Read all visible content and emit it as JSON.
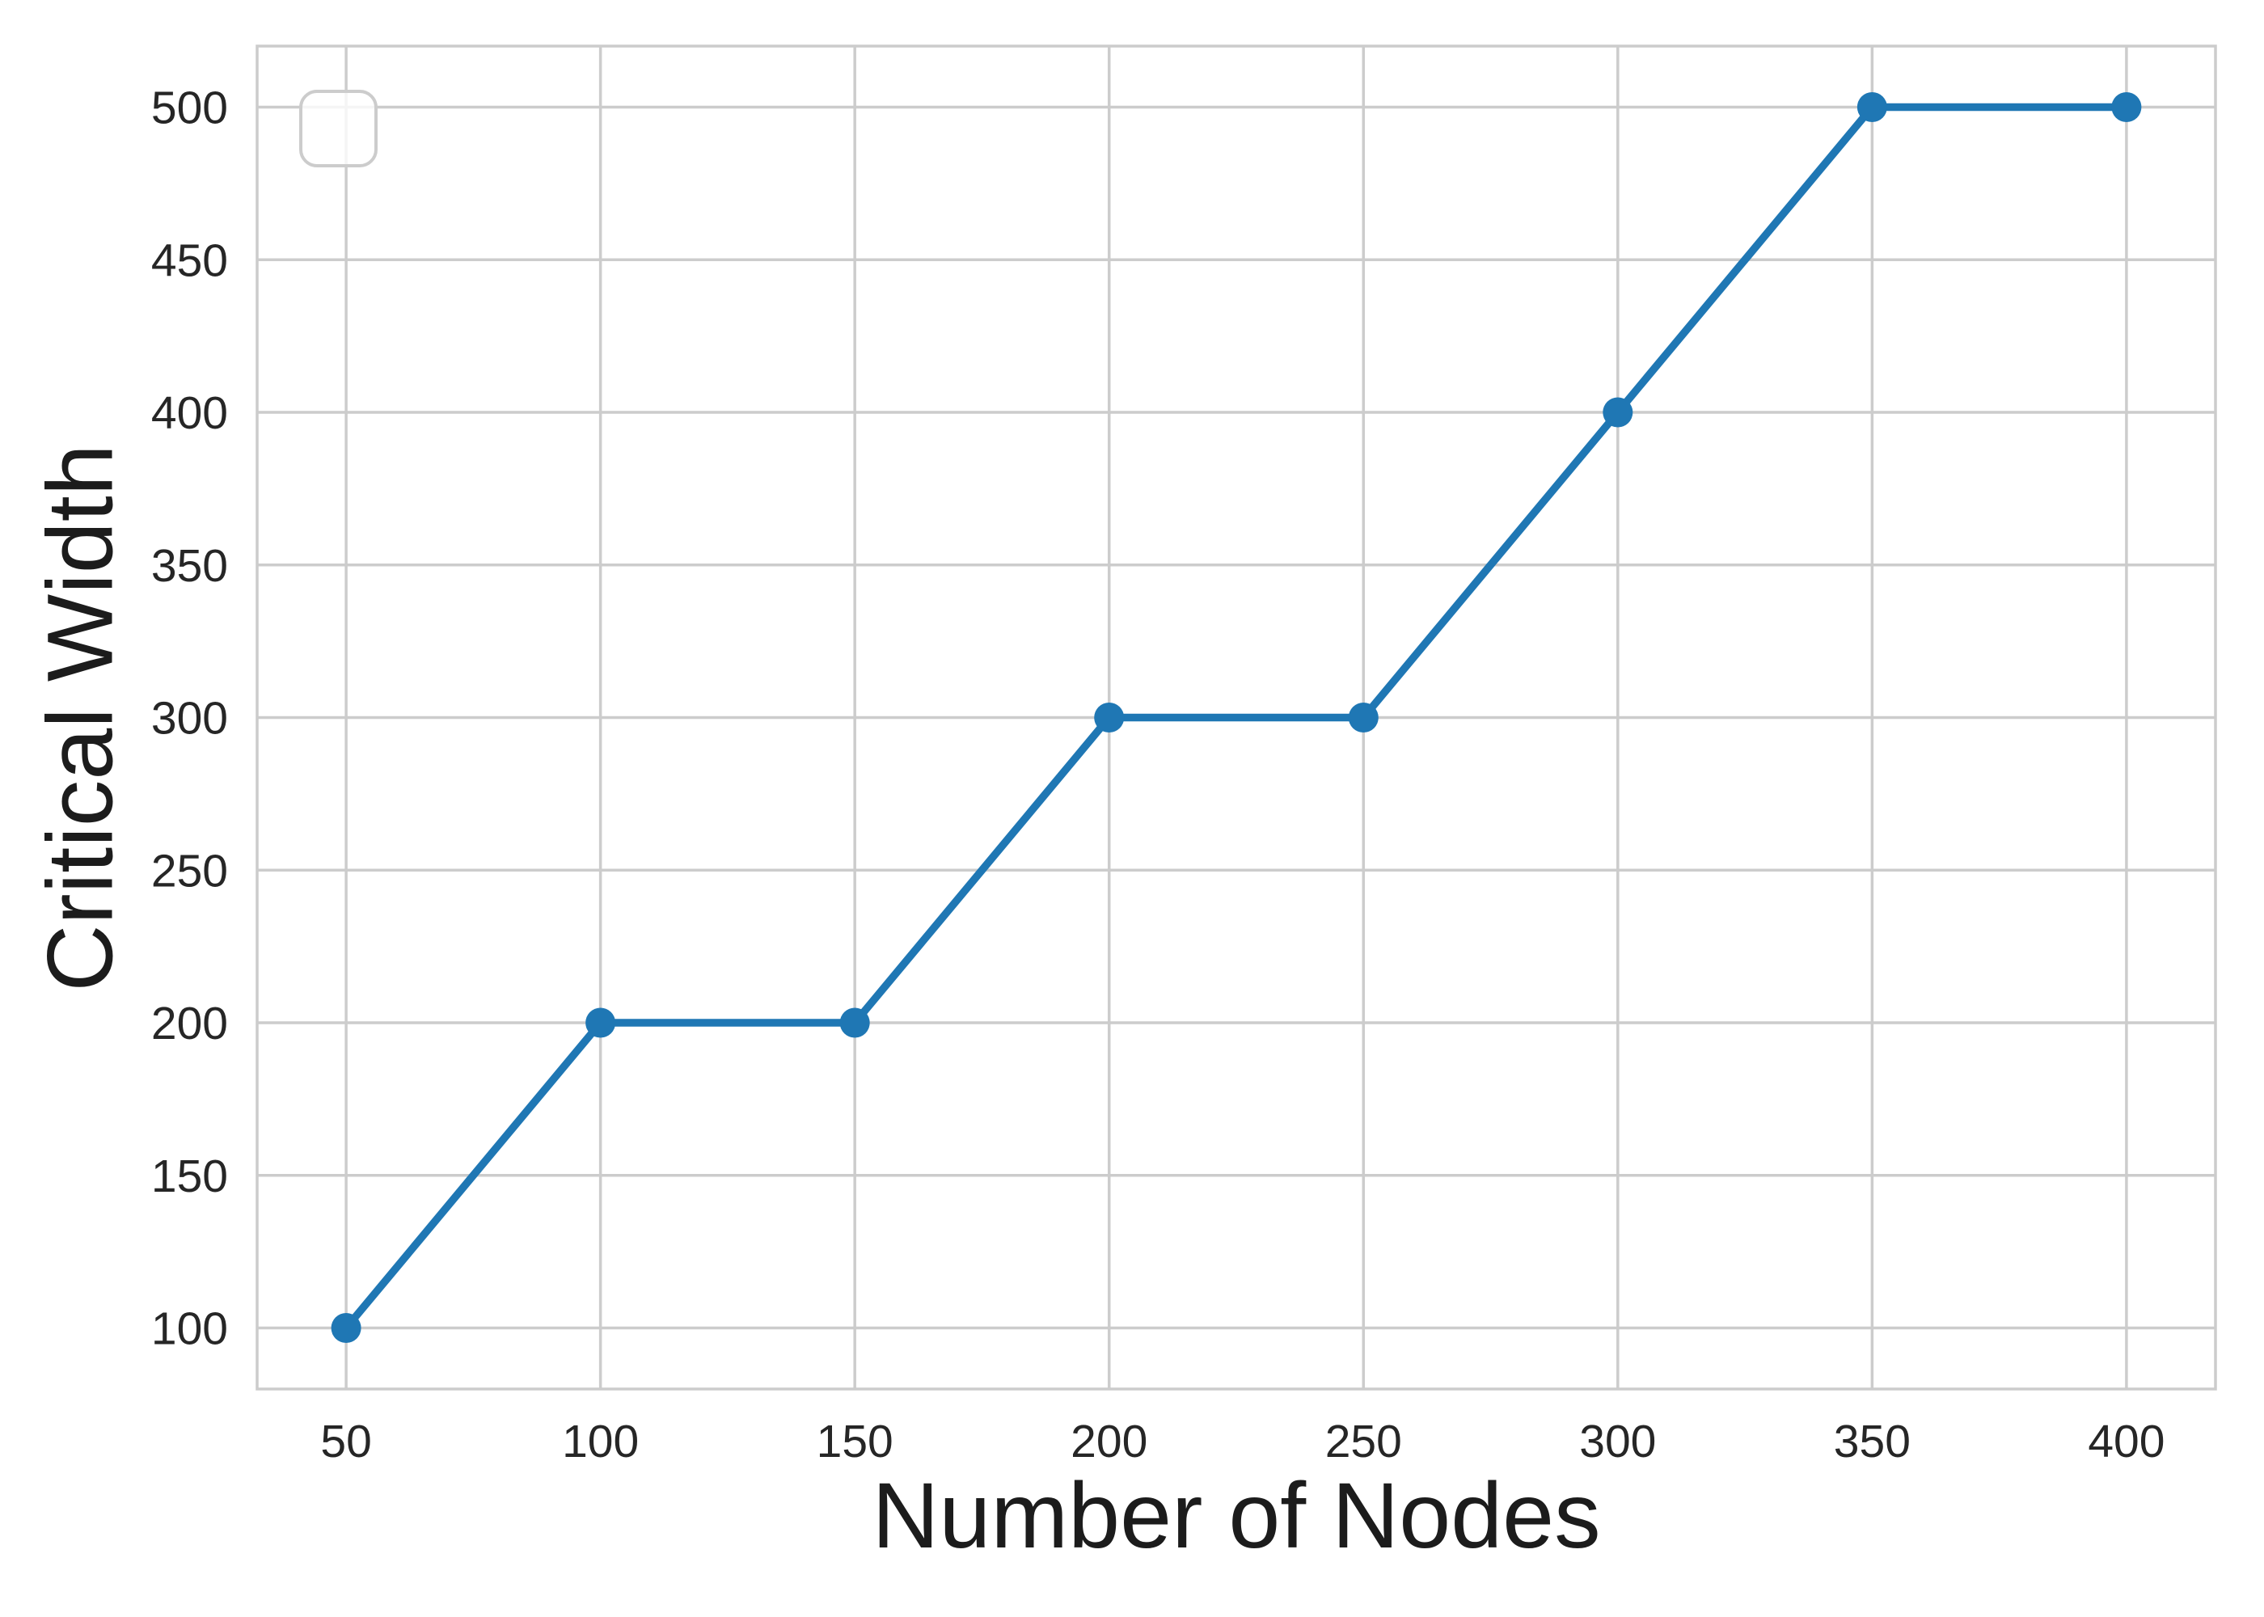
{
  "chart_data": {
    "type": "line",
    "title": "",
    "xlabel": "Number of Nodes",
    "ylabel": "Critical Width",
    "x": [
      50,
      100,
      150,
      200,
      250,
      300,
      350,
      400
    ],
    "series": [
      {
        "name": "",
        "values": [
          100,
          200,
          200,
          300,
          300,
          400,
          500,
          500
        ]
      }
    ],
    "xticks": [
      50,
      100,
      150,
      200,
      250,
      300,
      350,
      400
    ],
    "yticks": [
      100,
      150,
      200,
      250,
      300,
      350,
      400,
      450,
      500
    ],
    "xlim": [
      32.5,
      417.5
    ],
    "ylim": [
      80,
      520
    ],
    "grid": true,
    "legend": {
      "visible": true,
      "entries": [],
      "position": "upper left"
    },
    "style": {
      "line_color": "#1f77b4",
      "marker_color": "#1f77b4",
      "grid_color": "#cccccc",
      "spine_color": "#cccccc",
      "tick_label_color": "#262626",
      "axis_label_color": "#1c1c1c",
      "background": "#ffffff",
      "legend_border_color": "#cccccc",
      "legend_fill": "rgba(255,255,255,0.8)"
    }
  }
}
